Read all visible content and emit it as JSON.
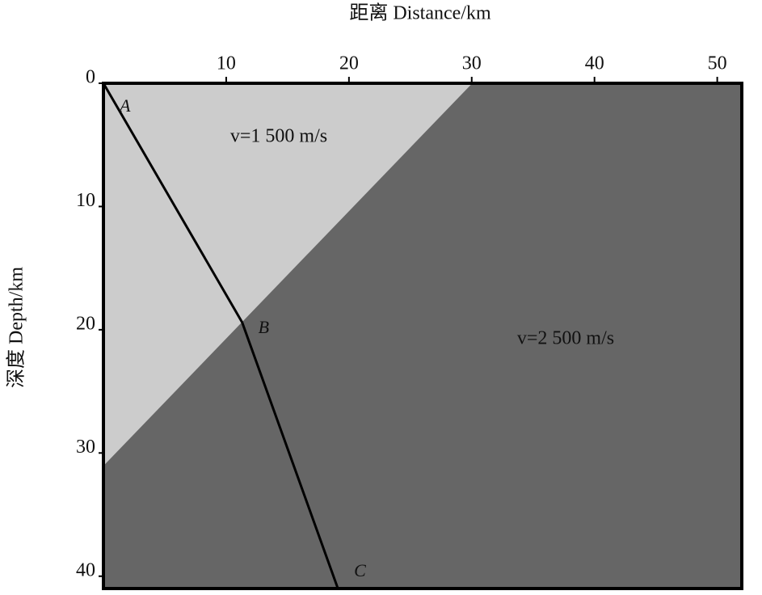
{
  "chart_data": {
    "type": "line",
    "x_label": "距离 Distance/km",
    "y_label": "深度 Depth/km",
    "xlim": [
      0,
      52
    ],
    "ylim": [
      0,
      41
    ],
    "y_inverted": true,
    "xticks": [
      10,
      20,
      30,
      40,
      50
    ],
    "yticks": [
      0,
      10,
      20,
      30,
      40
    ],
    "regions": [
      {
        "label": "v=1 500 m/s",
        "color": "#cccccc"
      },
      {
        "label": "v=2 500 m/s",
        "color": "#666666"
      }
    ],
    "interface": {
      "x": [
        30,
        0
      ],
      "values": [
        0,
        31
      ],
      "color": "#cccccc"
    },
    "series": [
      {
        "color": "#000000",
        "x": [
          0,
          11.3,
          19.1
        ],
        "values": [
          0,
          19.4,
          41
        ],
        "point_labels": [
          "A",
          "B",
          "C"
        ]
      }
    ]
  }
}
